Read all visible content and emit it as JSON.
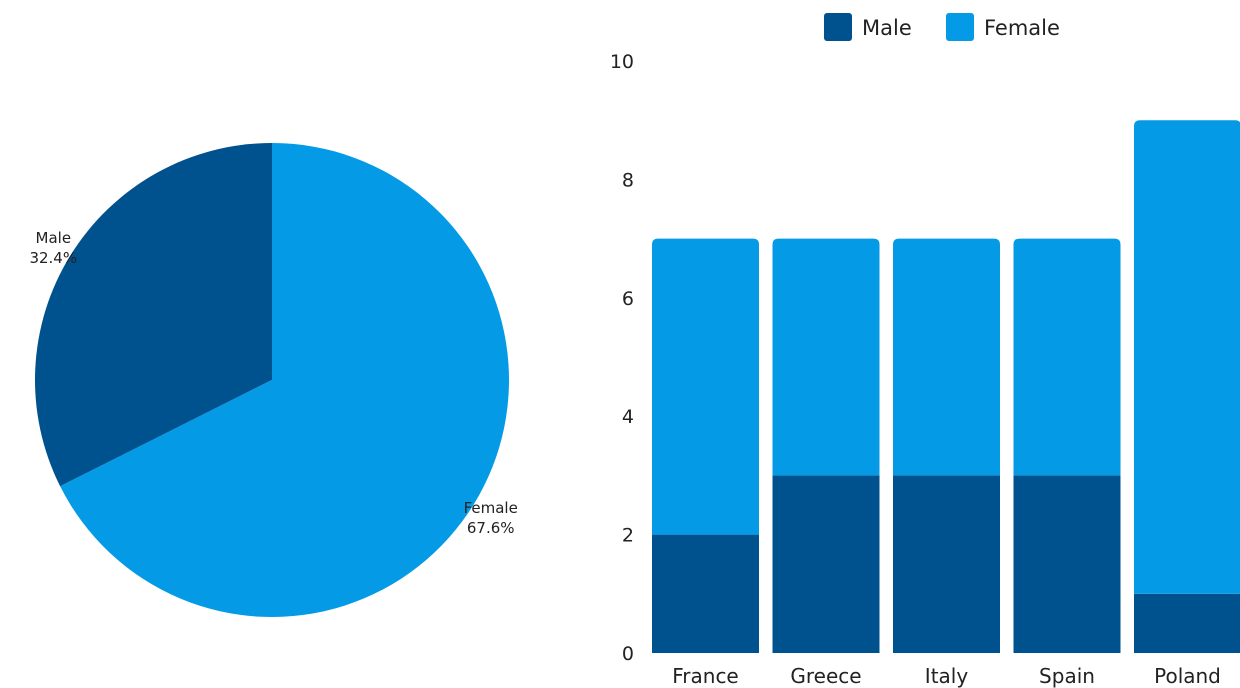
{
  "colors": {
    "male": "#00528f",
    "female": "#049ae5",
    "background": "#ffffff",
    "text": "#222222"
  },
  "chart_data": [
    {
      "type": "pie",
      "slices": [
        {
          "label": "Male",
          "value": 32.4,
          "display": "32.4%",
          "color": "#00528f"
        },
        {
          "label": "Female",
          "value": 67.6,
          "display": "67.6%",
          "color": "#049ae5"
        }
      ]
    },
    {
      "type": "bar",
      "stacked": true,
      "categories": [
        "France",
        "Greece",
        "Italy",
        "Spain",
        "Poland"
      ],
      "series": [
        {
          "name": "Male",
          "values": [
            2,
            3,
            3,
            3,
            1
          ],
          "color": "#00528f"
        },
        {
          "name": "Female",
          "values": [
            5,
            4,
            4,
            4,
            8
          ],
          "color": "#049ae5"
        }
      ],
      "ylim": [
        0,
        10
      ],
      "yticks": [
        0,
        2,
        4,
        6,
        8,
        10
      ],
      "grid": false,
      "legend": "top"
    }
  ]
}
